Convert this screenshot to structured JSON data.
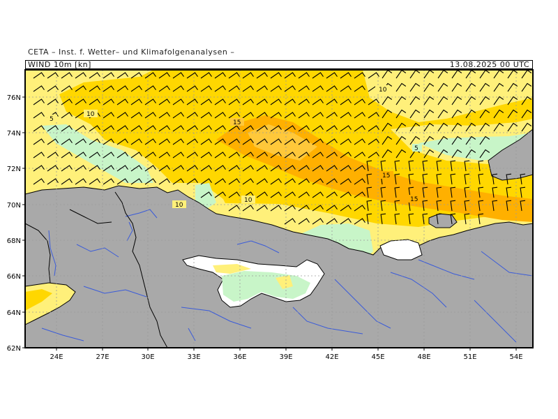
{
  "credit": "CETA – Inst. f. Wetter– und Klimafolgenanalysen –",
  "field_label": "WIND 10m [kn]",
  "valid_time": "13.08.2025 00 UTC",
  "colors": {
    "wind_0_5": "#c8f5c8",
    "wind_5_10": "#fff07a",
    "wind_10_15": "#ffd700",
    "wind_15_20": "#ffb000",
    "land": "#a9a9a9",
    "rivers": "#3a5bd9",
    "grid": "#9a9a9a",
    "barbs": "#000000"
  },
  "map": {
    "lat_labels": [
      "76N",
      "74N",
      "72N",
      "70N",
      "68N",
      "66N",
      "64N",
      "62N"
    ],
    "lon_labels": [
      "24E",
      "27E",
      "30E",
      "33E",
      "36E",
      "39E",
      "42E",
      "45E",
      "48E",
      "51E",
      "54E"
    ],
    "contour_labels": [
      "10",
      "5",
      "10",
      "15",
      "5",
      "15",
      "15",
      "10",
      "10"
    ]
  },
  "chart_data": {
    "type": "heatmap",
    "title": "WIND 10m [kn]",
    "units": "kn",
    "valid_time": "13.08.2025 00 UTC",
    "lat_range": [
      62,
      77.5
    ],
    "lon_range": [
      22.5,
      55.5
    ],
    "contour_levels": [
      5,
      10,
      15
    ],
    "shading_bins": [
      {
        "range": [
          0,
          5
        ],
        "color": "#c8f5c8"
      },
      {
        "range": [
          5,
          10
        ],
        "color": "#fff07a"
      },
      {
        "range": [
          10,
          15
        ],
        "color": "#ffd700"
      },
      {
        "range": [
          15,
          20
        ],
        "color": "#ffb000"
      }
    ],
    "wind_direction": "mostly northwesterly over the Barents Sea",
    "max_region": "15-20 kn band from 36E-55E, 70N-74N"
  }
}
